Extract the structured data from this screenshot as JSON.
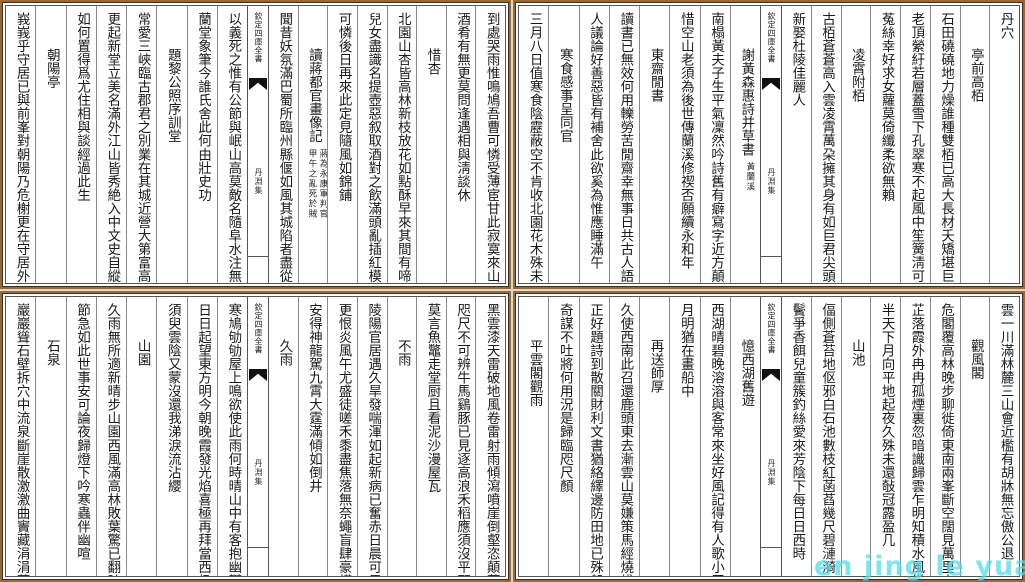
{
  "strip": {
    "collection": "欽定四庫全書",
    "book": "丹淵集"
  },
  "watermark": "en jing le yuan",
  "colors": {
    "frame": "#9a6a34",
    "ink": "#1a1a1a",
    "watermark": "#50dceb"
  },
  "panels": [
    {
      "position": "top-left",
      "right_columns": [
        {
          "text": "到處哭雨惟鳴鳩吾曹可憐受薄宦甘此寂寞來山州"
        },
        {
          "text": "酒肴有無更莫問逢遇相與淸談休"
        },
        {
          "text": "惜杏",
          "title": true
        },
        {
          "text": "北園山杏皆高林新枝放花如點酥早來其間有啼鳥"
        },
        {
          "text": "兒女盡識名提壺惡叙取酒對之飲滿頭亂插紅模糊"
        },
        {
          "text": "可憐後日再來此定見隨風如錦鋪"
        },
        {
          "text": "讀蔣都官畫像記",
          "title": true,
          "note": [
            "蔣為永康軍判官",
            "甲午之亂死於賊"
          ]
        },
        {
          "text": "聞昔妖氛滿巴蜀所臨州縣偃如風其城陷者盡從賊"
        }
      ],
      "left_columns": [
        {
          "text": "以義死之惟有公節與岷山高莫敵名隨阜水注無窮"
        },
        {
          "text": "蘭堂象筆今誰氏舍此何由壯史功"
        },
        {
          "text": "題黎公照序訓堂",
          "title": true
        },
        {
          "text": "常愛三峽臨古郡君之別業在其城近營大第富高處"
        },
        {
          "text": "更起新堂立美名滿外江山皆秀絶入中文史自縱橫"
        },
        {
          "text": "如何置得爲尤住相與談經過此生"
        },
        {
          "text": "朝陽亭",
          "title": true
        },
        {
          "text": "峩峩乎守居已與前峯對朝陽乃危榭更在守居外煙"
        }
      ]
    },
    {
      "position": "top-right",
      "right_columns": [
        {
          "text": "丹穴"
        },
        {
          "text": "亭前高栢",
          "title": true
        },
        {
          "text": "石田磽磽地力燥誰種雙栢已高大長材夭矯堪巨棟"
        },
        {
          "text": "老頂縈紆若層蓋雪下孔翠寒不起風中笙簧淸可愛"
        },
        {
          "text": "菟絲幸好求女蘿莫倚纖柔欲無賴"
        },
        {
          "text": "凌霄附栢",
          "title": true
        },
        {
          "text": "古栢蒼蒼高入雲凌霄萬朶擁其身有如巨君尖頭髮"
        },
        {
          "text": "新娶杜陵佳麗人"
        }
      ],
      "left_columns": [
        {
          "text": "謝黃森惠詩并草書",
          "title": true,
          "note": [
            "黃蘭溪"
          ]
        },
        {
          "text": "南榻黃夫子生平氣凜然吟詩舊有癖寫字近方顛可"
        },
        {
          "text": "惜空山老須為後世傳蘭溪修禊否願續永和年"
        },
        {
          "text": "東齋閒書",
          "title": true
        },
        {
          "text": "讀書已無效何用轢勞苦閒齋幸無事日共古人語古"
        },
        {
          "text": "人議論好善惡皆有補舍此欲奚為惟應睡滿午"
        },
        {
          "text": "寒食感事呈同官",
          "title": true
        },
        {
          "text": "三月八日值寒食陰靂蔽空不肯收北園花木殊未動"
        }
      ]
    },
    {
      "position": "bottom-left",
      "right_columns": [
        {
          "text": "黑雲漆天雷破地風卷雷射雨傾瀉噴崖倒壑恣顛蕩"
        },
        {
          "text": "咫尺不可辨牛馬鷄豚已見逐高浪禾稻應須沒平野"
        },
        {
          "text": "莫言魚鼈走堂厨且看泥沙漫屋瓦"
        },
        {
          "text": "不雨",
          "title": true
        },
        {
          "text": "陵陽官居遇久旱發喘渾如起新病已奮赤日晨可畏"
        },
        {
          "text": "更恨炎風午尤盛徒嗟禾黍盡焦落無奈蠅盲肆豪橫"
        },
        {
          "text": "安得神龍駕九霄大霆滿傾如倒井"
        },
        {
          "text": "久雨",
          "title": true
        }
      ],
      "left_columns": [
        {
          "text": "寒鳩劬劬屋上鳴欲使此雨何時晴山中有客抱幽鬱"
        },
        {
          "text": "日日起望東方明今朝晚霞發光焰喜極再拜當西楹"
        },
        {
          "text": "須臾雲陰又蒙沒還我涕淚流沾纓"
        },
        {
          "text": "山園",
          "title": true
        },
        {
          "text": "久雨無所適新晴步山園西風滿高林敗葉驚已翻時"
        },
        {
          "text": "節急如此世事安可論夜歸燈下吟寒蟲伴幽喧"
        },
        {
          "text": "石泉",
          "title": true
        },
        {
          "text": "巖巖聳石壁拆穴中流泉斷崖散激激曲竇藏涓涓蓄"
        }
      ]
    },
    {
      "position": "bottom-right",
      "right_columns": [
        {
          "text": "雲一川滿林麓三山會近檻有胡牀無忘傲公退"
        },
        {
          "text": "觀風閣",
          "title": true
        },
        {
          "text": "危閣覆高林晚步聊徙倚東南兩峯斷空闊見萬里古"
        },
        {
          "text": "芷落霞外冉冉孤煙裏忽暗識歸雲乍明知積水風從"
        },
        {
          "text": "半天下月向平地起夜久殊未還敧冠露盈几"
        },
        {
          "text": "山池",
          "title": true
        },
        {
          "text": "偪側蒼苔地伛邪白石池數枝紅菡萏幾尺碧漣漪"
        },
        {
          "text": "鬢爭香餌兒童簇釣絲愛來芳陰下每日日西時"
        }
      ],
      "left_columns": [
        {
          "text": "憶西湖舊遊",
          "title": true
        },
        {
          "text": "西湖晴碧晚溶溶與客常來坐好風記得有人歌小玉"
        },
        {
          "text": "月明猶在畫船中"
        },
        {
          "text": "再送師厚",
          "title": true
        },
        {
          "text": "久使西南此召還鹿頭東去漸雲山莫嫌策馬經燒棧"
        },
        {
          "text": "正好題詩到散關財利文書猶絡繹邊防田地已殊般"
        },
        {
          "text": "奇謀不吐將何用況是歸臨咫尺顏"
        },
        {
          "text": "平雲閣觀雨",
          "title": true
        }
      ]
    }
  ]
}
